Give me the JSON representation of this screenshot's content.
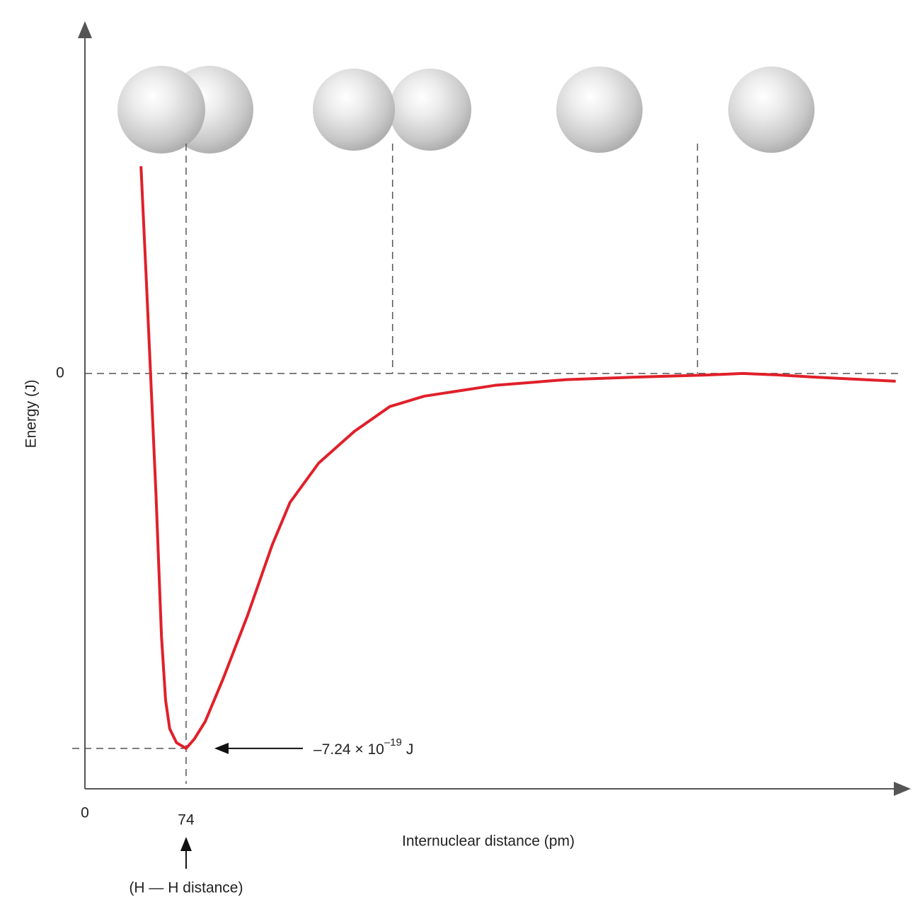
{
  "chart_data": {
    "type": "line",
    "x_label": "Internuclear distance (pm)",
    "y_label": "Energy (J)",
    "xlim": [
      0,
      603
    ],
    "ylim": [
      -8.02e-19,
      6.8e-19
    ],
    "xticks": [
      0,
      74
    ],
    "yticks": [
      0
    ],
    "series": [
      {
        "color": "#e0202a",
        "x": [
          41,
          45,
          48,
          52,
          56,
          59,
          62,
          67,
          74,
          80,
          88,
          101,
          119,
          137,
          150,
          171,
          197,
          223,
          248,
          300,
          352,
          404,
          456,
          481,
          507,
          533,
          593
        ],
        "values": [
          4e-19,
          1.75e-19,
          0,
          -2.35e-19,
          -5.08e-19,
          -6.31e-19,
          -6.86e-19,
          -7.13e-19,
          -7.24e-19,
          -7.06e-19,
          -6.72e-19,
          -5.9e-19,
          -4.67e-19,
          -3.31e-19,
          -2.49e-19,
          -1.73e-19,
          -1.12e-19,
          -6.4e-20,
          -4.4e-20,
          -2.3e-20,
          -1.2e-20,
          -7e-21,
          -3e-21,
          0,
          -3e-21,
          -7e-21,
          -1.5e-20
        ]
      }
    ],
    "guides_x": [
      74,
      225,
      448
    ],
    "annotation": {
      "x": 74,
      "value": -7.24e-19,
      "text": "–7.24 × 10",
      "exponent": "–19",
      "unit": "J"
    },
    "x_marker_label": "(H — H distance)"
  }
}
